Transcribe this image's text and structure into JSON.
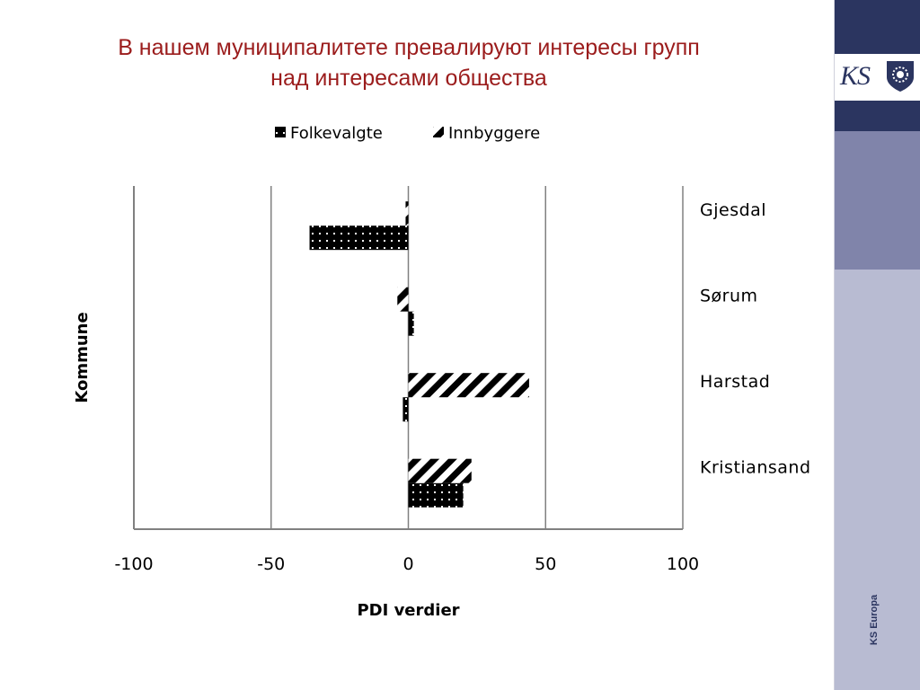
{
  "slide": {
    "title_line1": "В нашем муниципалитете превалируют интересы групп",
    "title_line2": "над интересами общества"
  },
  "sidebar": {
    "logo_text": "KS",
    "caption": "KS Europa",
    "colors": {
      "dark": "#2b3560",
      "mid": "#8084aa",
      "light": "#b8bbd2"
    }
  },
  "colors": {
    "title": "#9b1c1c",
    "series_fill": "#000000",
    "axis": "#808080"
  },
  "chart_data": {
    "type": "bar",
    "orientation": "horizontal",
    "categories": [
      "Gjesdal",
      "Sørum",
      "Harstad",
      "Kristiansand"
    ],
    "series": [
      {
        "name": "Folkevalgte",
        "values": [
          -36,
          2,
          -2,
          20
        ],
        "pattern": "dotted-solid"
      },
      {
        "name": "Innbyggere",
        "values": [
          -1,
          -4,
          44,
          23
        ],
        "pattern": "diagonal-stripes"
      }
    ],
    "xlabel": "PDI verdier",
    "ylabel": "Kommune",
    "xlim": [
      -100,
      100
    ],
    "xticks": [
      -100,
      -50,
      0,
      50,
      100
    ],
    "legend_position": "top",
    "grid": "vertical"
  }
}
